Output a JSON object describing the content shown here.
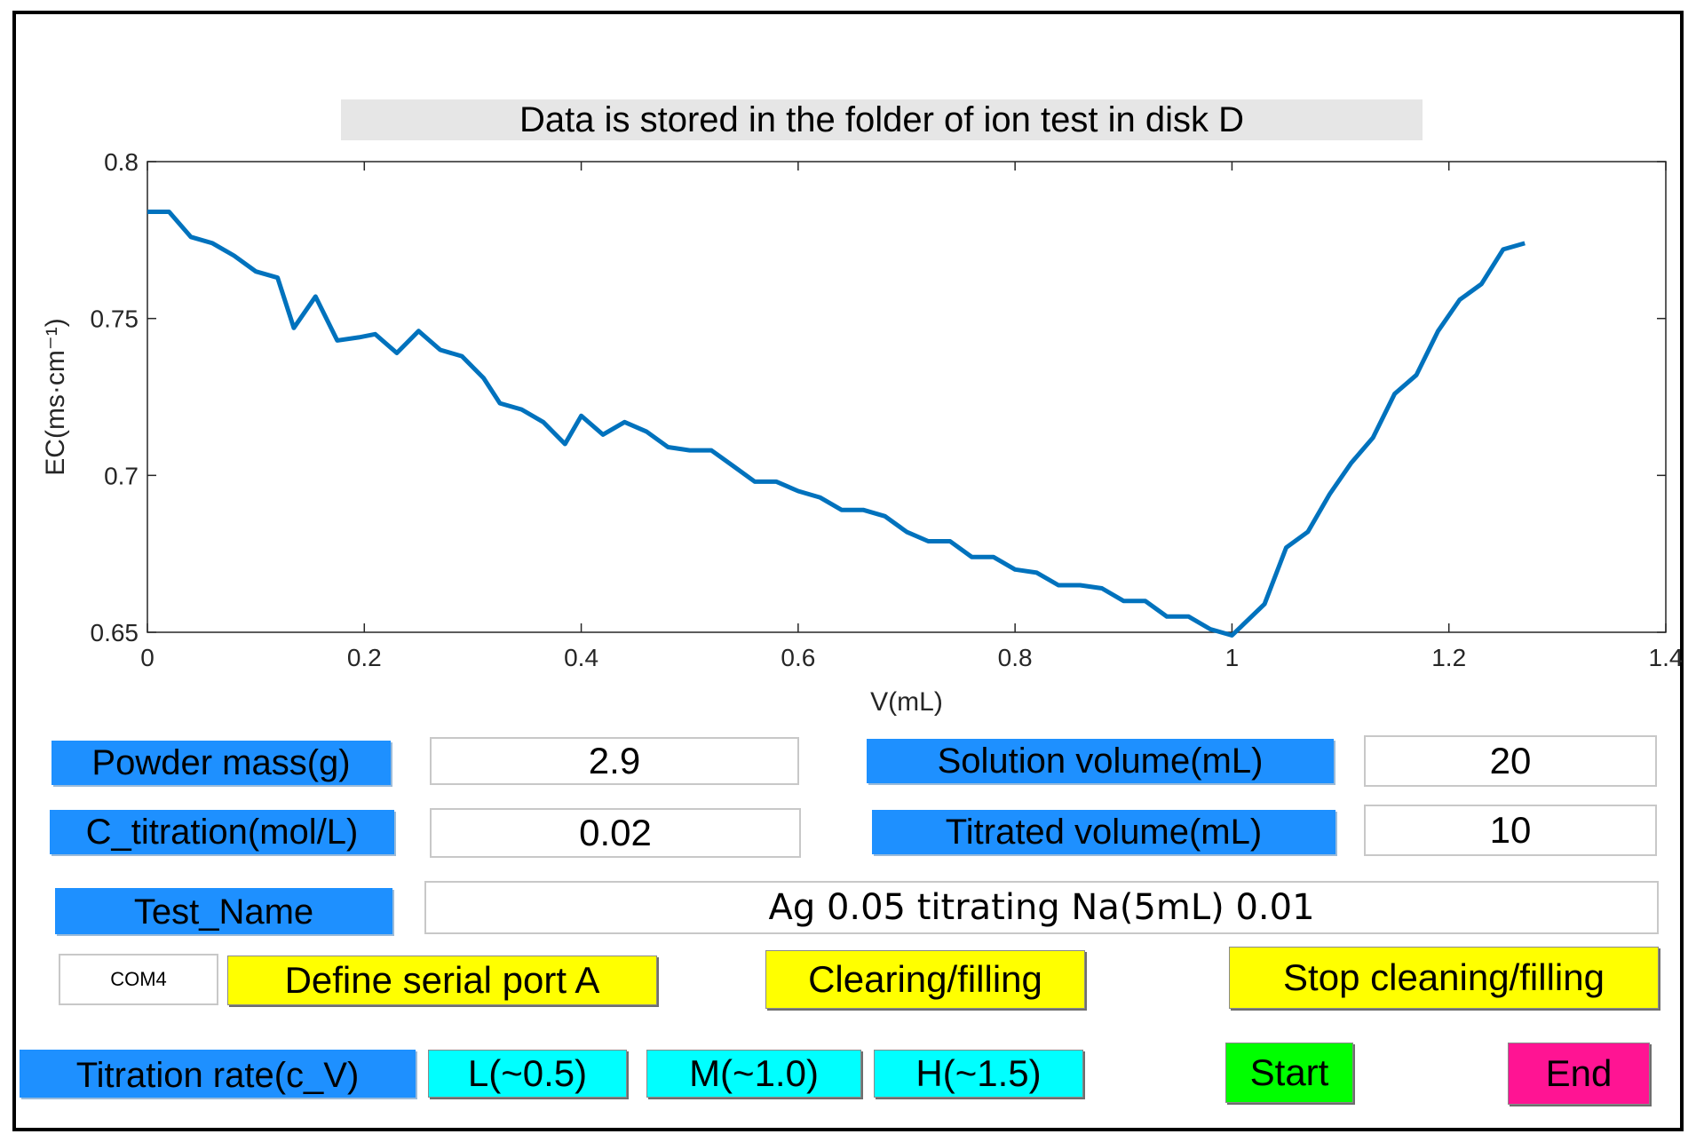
{
  "banner": "Data is stored in the folder of ion  test in disk D",
  "chart_data": {
    "type": "line",
    "title": "",
    "xlabel": "V(mL)",
    "ylabel": "EC(ms·cm⁻¹)",
    "xlim": [
      0,
      1.4
    ],
    "ylim": [
      0.65,
      0.8
    ],
    "xticks": [
      "0",
      "0.2",
      "0.4",
      "0.6",
      "0.8",
      "1",
      "1.2",
      "1.4"
    ],
    "yticks": [
      "0.65",
      "0.7",
      "0.75",
      "0.8"
    ],
    "series": [
      {
        "name": "EC",
        "color": "#0072BD",
        "x": [
          0,
          0.02,
          0.04,
          0.06,
          0.08,
          0.1,
          0.12,
          0.135,
          0.155,
          0.175,
          0.195,
          0.21,
          0.23,
          0.25,
          0.27,
          0.29,
          0.31,
          0.325,
          0.345,
          0.365,
          0.385,
          0.4,
          0.42,
          0.44,
          0.46,
          0.48,
          0.5,
          0.52,
          0.54,
          0.56,
          0.58,
          0.6,
          0.62,
          0.64,
          0.66,
          0.68,
          0.7,
          0.72,
          0.74,
          0.76,
          0.78,
          0.8,
          0.82,
          0.84,
          0.86,
          0.88,
          0.9,
          0.92,
          0.94,
          0.96,
          0.98,
          0.99,
          1.0,
          1.03,
          1.05,
          1.07,
          1.09,
          1.11,
          1.13,
          1.15,
          1.17,
          1.19,
          1.21,
          1.23,
          1.25,
          1.27
        ],
        "y": [
          0.784,
          0.784,
          0.776,
          0.774,
          0.77,
          0.765,
          0.763,
          0.747,
          0.757,
          0.743,
          0.744,
          0.745,
          0.739,
          0.746,
          0.74,
          0.738,
          0.731,
          0.723,
          0.721,
          0.717,
          0.71,
          0.719,
          0.713,
          0.717,
          0.714,
          0.709,
          0.708,
          0.708,
          0.703,
          0.698,
          0.698,
          0.695,
          0.693,
          0.689,
          0.689,
          0.687,
          0.682,
          0.679,
          0.679,
          0.674,
          0.674,
          0.67,
          0.669,
          0.665,
          0.665,
          0.664,
          0.66,
          0.66,
          0.655,
          0.655,
          0.651,
          0.65,
          0.649,
          0.659,
          0.677,
          0.682,
          0.694,
          0.704,
          0.712,
          0.726,
          0.732,
          0.746,
          0.756,
          0.761,
          0.772,
          0.774
        ]
      }
    ]
  },
  "form": {
    "powder_mass_label": "Powder mass(g)",
    "powder_mass_value": "2.9",
    "solution_volume_label": "Solution volume(mL)",
    "solution_volume_value": "20",
    "c_titration_label": "C_titration(mol/L)",
    "c_titration_value": "0.02",
    "titrated_volume_label": "Titrated volume(mL)",
    "titrated_volume_value": "10",
    "test_name_label": "Test_Name",
    "test_name_value": "Ag 0.05 titrating Na(5mL) 0.01"
  },
  "serial": {
    "port_value": "COM4",
    "define_port_label": "Define serial port A"
  },
  "buttons": {
    "clearing_filling": "Clearing/filling",
    "stop_cleaning_filling": "Stop cleaning/filling",
    "start": "Start",
    "end": "End"
  },
  "rate": {
    "label": "Titration rate(c_V)",
    "low": "L(~0.5)",
    "medium": "M(~1.0)",
    "high": "H(~1.5)"
  }
}
